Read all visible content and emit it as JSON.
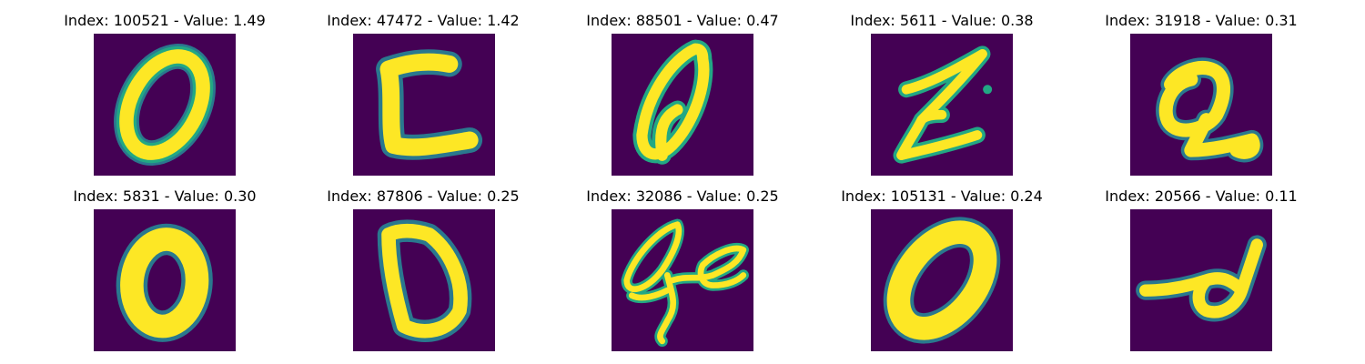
{
  "colors": {
    "background": "#440154",
    "stroke_edge": "#2a788e",
    "stroke_mid": "#22a884",
    "stroke_core": "#fde725",
    "title_text": "#000000"
  },
  "panels": [
    {
      "title": "Index: 100521 - Value: 1.49",
      "index": 100521,
      "value": 1.49,
      "digit": "0"
    },
    {
      "title": "Index: 47472 - Value: 1.42",
      "index": 47472,
      "value": 1.42,
      "digit": "C-shape"
    },
    {
      "title": "Index: 88501 - Value: 0.47",
      "index": 88501,
      "value": 0.47,
      "digit": "0"
    },
    {
      "title": "Index: 5611 - Value: 0.38",
      "index": 5611,
      "value": 0.38,
      "digit": "Z-shape"
    },
    {
      "title": "Index: 31918 - Value: 0.31",
      "index": 31918,
      "value": 0.31,
      "digit": "Q-shape"
    },
    {
      "title": "Index: 5831 - Value: 0.30",
      "index": 5831,
      "value": 0.3,
      "digit": "0"
    },
    {
      "title": "Index: 87806 - Value: 0.25",
      "index": 87806,
      "value": 0.25,
      "digit": "D-shape"
    },
    {
      "title": "Index: 32086 - Value: 0.25",
      "index": 32086,
      "value": 0.25,
      "digit": "scribble"
    },
    {
      "title": "Index: 105131 - Value: 0.24",
      "index": 105131,
      "value": 0.24,
      "digit": "0"
    },
    {
      "title": "Index: 20566 - Value: 0.11",
      "index": 20566,
      "value": 0.11,
      "digit": "loop-shape"
    }
  ]
}
